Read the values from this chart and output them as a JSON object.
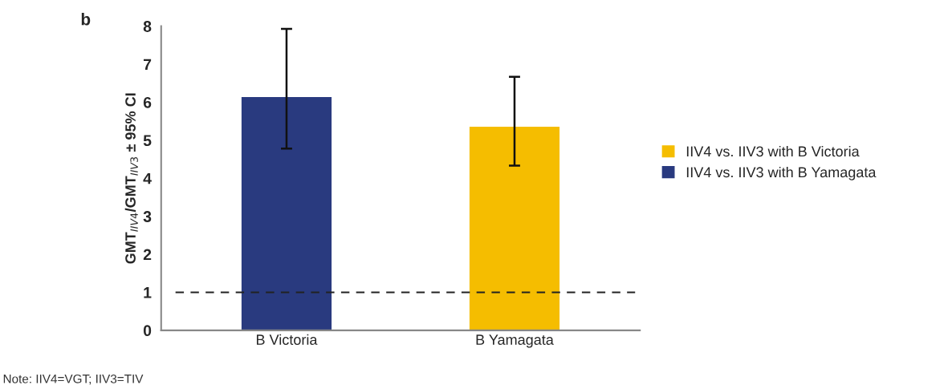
{
  "chart_data": {
    "type": "bar",
    "categories": [
      "B Victoria",
      "B Yamagata"
    ],
    "ylabel": "GMT$_{IIV4}$/GMT$_{IIV3}$ ± 95% CI",
    "ylim": [
      0,
      8
    ],
    "yticks": [
      0,
      1,
      2,
      3,
      4,
      5,
      6,
      7,
      8
    ],
    "series": [
      {
        "name": "IIV4 vs. IIV3 with B Victoria",
        "color": "#f5bd00",
        "values": [
          null,
          5.37
        ],
        "errors": [
          null,
          [
            4.33,
            6.67
          ]
        ]
      },
      {
        "name": "IIV4 vs. IIV3 with B Yamagata",
        "color": "#293a7f",
        "values": [
          6.15,
          null
        ],
        "errors": [
          [
            4.78,
            7.93
          ],
          null
        ]
      }
    ],
    "ref_lines": [
      {
        "axis": "y",
        "value": 1,
        "color": "#222222",
        "line_style": "dashed"
      }
    ],
    "annotations": [
      "b",
      "Note: IIV4=VGT; IIV3=TIV"
    ],
    "legend": "right",
    "grid": false
  }
}
